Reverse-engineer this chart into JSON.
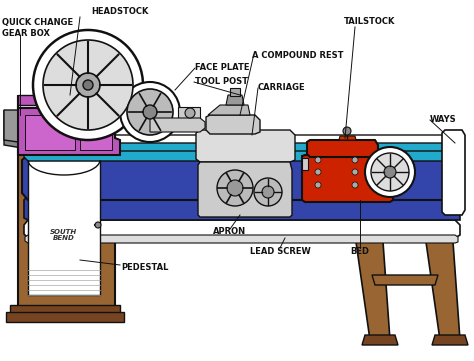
{
  "bg_color": "#ffffff",
  "colors": {
    "headstock_purple": "#bb55bb",
    "bed_blue": "#3344aa",
    "ways_cyan": "#22aacc",
    "tailstock_red": "#cc2200",
    "pedestal_brown": "#996633",
    "outline": "#111111",
    "white": "#ffffff",
    "gray": "#888888",
    "light_gray": "#cccccc",
    "dark_gray": "#555555",
    "cream": "#eeeecc",
    "dark_brown": "#774422",
    "mid_gray": "#aaaaaa"
  },
  "layout": {
    "xlim": [
      0,
      474
    ],
    "ylim": [
      0,
      361
    ]
  }
}
